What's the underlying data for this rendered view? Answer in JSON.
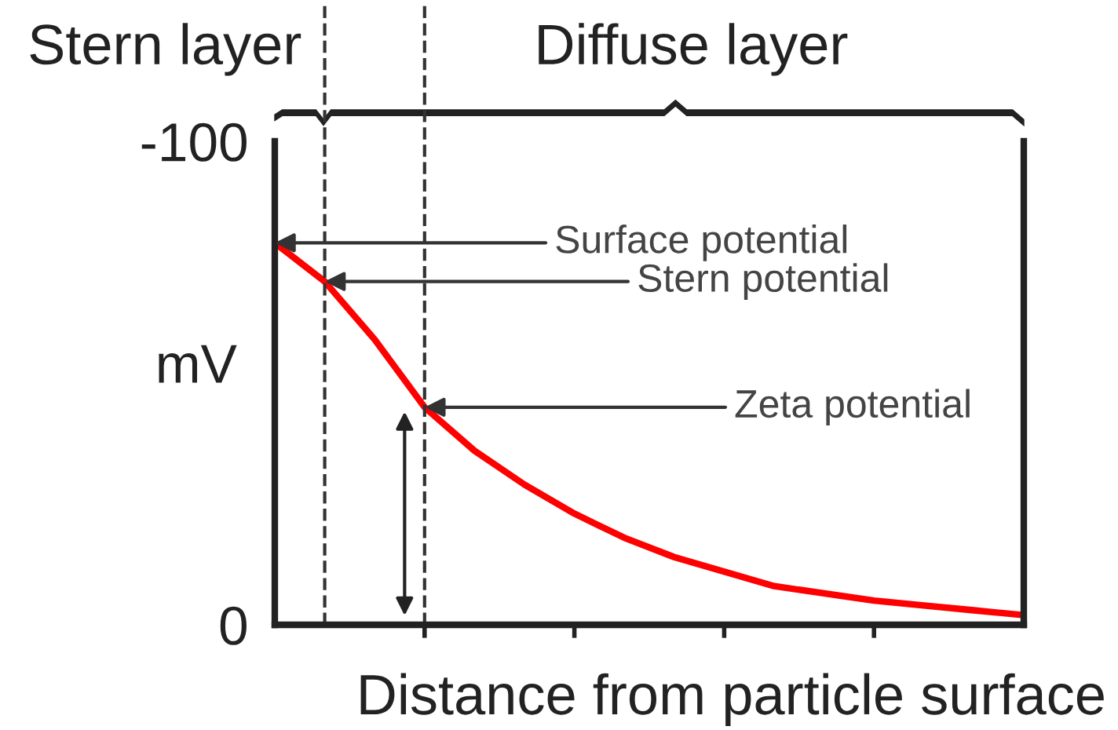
{
  "chart_data": {
    "type": "line",
    "xlabel": "Distance from particle surface",
    "ylabel": "mV",
    "categories": [
      null,
      null,
      null,
      null,
      null,
      null,
      null,
      null,
      null,
      null,
      null,
      null,
      null,
      null,
      null,
      null
    ],
    "series": [
      {
        "color": "#ff0000",
        "values": [
          -79,
          -71,
          -59,
          -45,
          -36,
          -29,
          -23,
          -18,
          -14,
          -11,
          -8,
          -6.5,
          -5,
          -4,
          -3,
          -2
        ]
      }
    ],
    "ylim": [
      0,
      -100
    ],
    "yticks": [
      -100,
      0
    ],
    "annotations": [
      "Stern layer",
      "Diffuse layer",
      "Surface potential",
      "Stern potential",
      "Zeta potential"
    ],
    "grid": false,
    "legend": false,
    "marker": "none",
    "line_style": "solid"
  }
}
